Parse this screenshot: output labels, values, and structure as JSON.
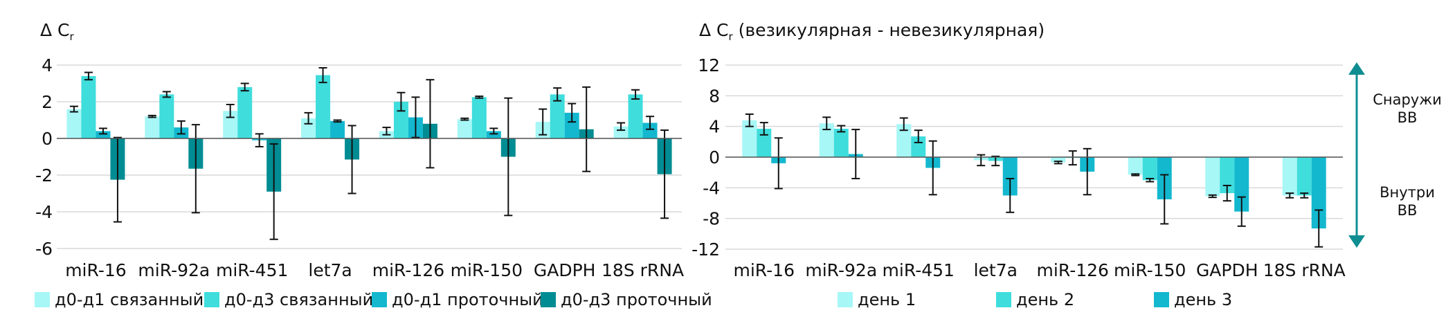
{
  "chart_data": [
    {
      "type": "bar",
      "ylabel_main": "Δ C",
      "ylabel_sub": "r",
      "ylabel_suffix": "",
      "ylim": [
        -6,
        4
      ],
      "yticks": [
        "4",
        "2",
        "0",
        "-2",
        "-4",
        "-6"
      ],
      "ytick_values": [
        4,
        2,
        0,
        -2,
        -4,
        -6
      ],
      "grid": true,
      "legend_position": "bottom",
      "categories": [
        "miR-16",
        "miR-92a",
        "miR-451",
        "let7a",
        "miR-126",
        "miR-150",
        "GADPH",
        "18S rRNA"
      ],
      "series": [
        {
          "name": "д0-д1 связанный",
          "color": "#A6F7F6",
          "values": [
            1.6,
            1.2,
            1.5,
            1.1,
            0.4,
            1.05,
            0.9,
            0.65
          ],
          "errors": [
            0.15,
            0.05,
            0.35,
            0.3,
            0.2,
            0.05,
            0.7,
            0.2
          ]
        },
        {
          "name": "д0-д3 связанный",
          "color": "#3FDDDC",
          "values": [
            3.4,
            2.4,
            2.8,
            3.45,
            2.0,
            2.25,
            2.4,
            2.4
          ],
          "errors": [
            0.2,
            0.15,
            0.2,
            0.4,
            0.5,
            0.05,
            0.35,
            0.25
          ]
        },
        {
          "name": "д0-д1 проточный",
          "color": "#13B8CF",
          "values": [
            0.4,
            0.6,
            -0.1,
            0.95,
            1.15,
            0.4,
            1.4,
            0.85
          ],
          "errors": [
            0.15,
            0.35,
            0.35,
            0.05,
            1.1,
            0.15,
            0.5,
            0.35
          ]
        },
        {
          "name": "д0-д3 проточный",
          "color": "#008C93",
          "values": [
            -2.25,
            -1.65,
            -2.9,
            -1.15,
            0.8,
            -1.0,
            0.5,
            -1.95
          ],
          "errors": [
            2.3,
            2.4,
            2.6,
            1.85,
            2.4,
            3.2,
            2.3,
            2.4
          ]
        }
      ]
    },
    {
      "type": "bar",
      "ylabel_main": "Δ C",
      "ylabel_sub": "r",
      "ylabel_suffix": " (везикулярная - невезикулярная)",
      "ylim": [
        -12,
        12
      ],
      "yticks": [
        "12",
        "8",
        "4",
        "0",
        "-4",
        "-8",
        "-12"
      ],
      "ytick_values": [
        12,
        8,
        4,
        0,
        -4,
        -8,
        -12
      ],
      "grid": true,
      "legend_position": "bottom",
      "categories": [
        "miR-16",
        "miR-92a",
        "miR-451",
        "let7a",
        "miR-126",
        "miR-150",
        "GAPDH",
        "18S rRNA"
      ],
      "series": [
        {
          "name": "день 1",
          "color": "#A6F7F6",
          "values": [
            4.8,
            4.4,
            4.3,
            -0.4,
            -0.7,
            -2.3,
            -5.1,
            -5.0
          ],
          "errors": [
            0.8,
            0.8,
            0.8,
            0.7,
            0.15,
            0.1,
            0.15,
            0.3
          ]
        },
        {
          "name": "день 2",
          "color": "#3FDDDC",
          "values": [
            3.7,
            3.7,
            2.7,
            -0.5,
            -0.1,
            -3.0,
            -4.7,
            -5.0
          ],
          "errors": [
            0.8,
            0.4,
            0.8,
            0.6,
            0.9,
            0.2,
            1.0,
            0.3
          ]
        },
        {
          "name": "день 3",
          "color": "#13B8CF",
          "values": [
            -0.8,
            0.4,
            -1.4,
            -5.0,
            -1.9,
            -5.5,
            -7.1,
            -9.3
          ],
          "errors": [
            3.3,
            3.2,
            3.5,
            2.2,
            3.0,
            3.2,
            1.9,
            2.4
          ]
        }
      ],
      "side_annotations": {
        "top": "Снаружи ВВ",
        "bottom": "Внутри ВВ",
        "arrow_color": "#0F8E92"
      }
    }
  ]
}
